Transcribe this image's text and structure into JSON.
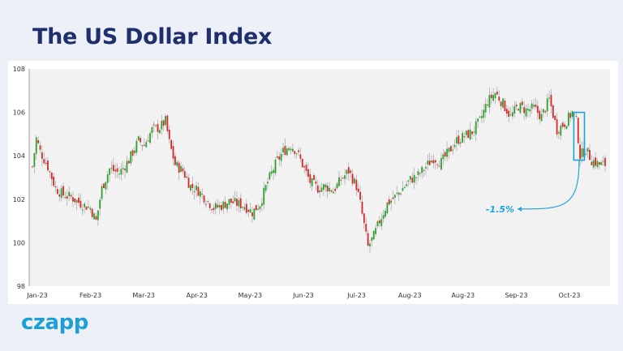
{
  "header": {
    "title": "The US Dollar Index"
  },
  "brand": {
    "logo_text": "czapp"
  },
  "colors": {
    "up": "#2ca02c",
    "down": "#d62728",
    "wick": "#999999",
    "highlight": "#1fa3dc",
    "plot_bg": "#f2f2f2"
  },
  "annotation": {
    "text": "-1.5%"
  },
  "chart_data": {
    "type": "candlestick",
    "title": "The US Dollar Index",
    "xlabel": "",
    "ylabel": "",
    "ylim": [
      98,
      108
    ],
    "yticks": [
      98,
      100,
      102,
      104,
      106,
      108
    ],
    "xticks": [
      "Jan-23",
      "Feb-23",
      "Mar-23",
      "Apr-23",
      "May-23",
      "Jun-23",
      "Jul-23",
      "Aug-23",
      "Aug-23",
      "Sep-23",
      "Oct-23"
    ],
    "grid": false,
    "legend": "none",
    "approx_daily_close_path": [
      [
        0,
        103.5
      ],
      [
        2,
        104.8
      ],
      [
        4,
        104.2
      ],
      [
        8,
        103.5
      ],
      [
        12,
        102.5
      ],
      [
        16,
        102.2
      ],
      [
        20,
        102.1
      ],
      [
        25,
        101.8
      ],
      [
        30,
        101.6
      ],
      [
        33,
        101.0
      ],
      [
        36,
        102.5
      ],
      [
        40,
        103.4
      ],
      [
        45,
        103.2
      ],
      [
        50,
        103.8
      ],
      [
        55,
        104.7
      ],
      [
        58,
        104.5
      ],
      [
        62,
        105.2
      ],
      [
        66,
        105.3
      ],
      [
        69,
        105.6
      ],
      [
        71,
        104.6
      ],
      [
        74,
        103.6
      ],
      [
        78,
        103.3
      ],
      [
        82,
        102.6
      ],
      [
        86,
        102.4
      ],
      [
        90,
        102.0
      ],
      [
        94,
        101.6
      ],
      [
        98,
        101.7
      ],
      [
        102,
        101.9
      ],
      [
        106,
        101.8
      ],
      [
        110,
        101.7
      ],
      [
        114,
        101.4
      ],
      [
        118,
        101.8
      ],
      [
        122,
        102.8
      ],
      [
        126,
        103.6
      ],
      [
        130,
        104.2
      ],
      [
        134,
        104.5
      ],
      [
        137,
        104.2
      ],
      [
        140,
        103.6
      ],
      [
        144,
        102.8
      ],
      [
        148,
        102.5
      ],
      [
        152,
        102.6
      ],
      [
        156,
        102.4
      ],
      [
        160,
        102.9
      ],
      [
        164,
        103.3
      ],
      [
        168,
        102.6
      ],
      [
        170,
        101.8
      ],
      [
        172,
        100.8
      ],
      [
        174,
        99.8
      ],
      [
        177,
        100.3
      ],
      [
        180,
        101.0
      ],
      [
        184,
        101.8
      ],
      [
        188,
        102.1
      ],
      [
        192,
        102.5
      ],
      [
        196,
        102.9
      ],
      [
        200,
        103.1
      ],
      [
        204,
        103.5
      ],
      [
        208,
        103.9
      ],
      [
        212,
        103.7
      ],
      [
        216,
        104.2
      ],
      [
        220,
        104.7
      ],
      [
        224,
        104.9
      ],
      [
        228,
        105.1
      ],
      [
        232,
        105.6
      ],
      [
        236,
        106.5
      ],
      [
        240,
        106.9
      ],
      [
        244,
        106.4
      ],
      [
        248,
        105.8
      ],
      [
        252,
        106.3
      ],
      [
        256,
        106.1
      ],
      [
        260,
        106.2
      ],
      [
        264,
        105.8
      ],
      [
        268,
        106.6
      ],
      [
        272,
        105.2
      ],
      [
        276,
        105.5
      ],
      [
        280,
        106.0
      ],
      [
        282,
        105.6
      ],
      [
        284,
        104.0
      ],
      [
        287,
        104.3
      ],
      [
        290,
        103.8
      ],
      [
        294,
        103.6
      ],
      [
        297,
        103.6
      ]
    ],
    "highlight_range": {
      "x_index": [
        282,
        285
      ],
      "y": [
        103.8,
        106.0
      ]
    }
  }
}
